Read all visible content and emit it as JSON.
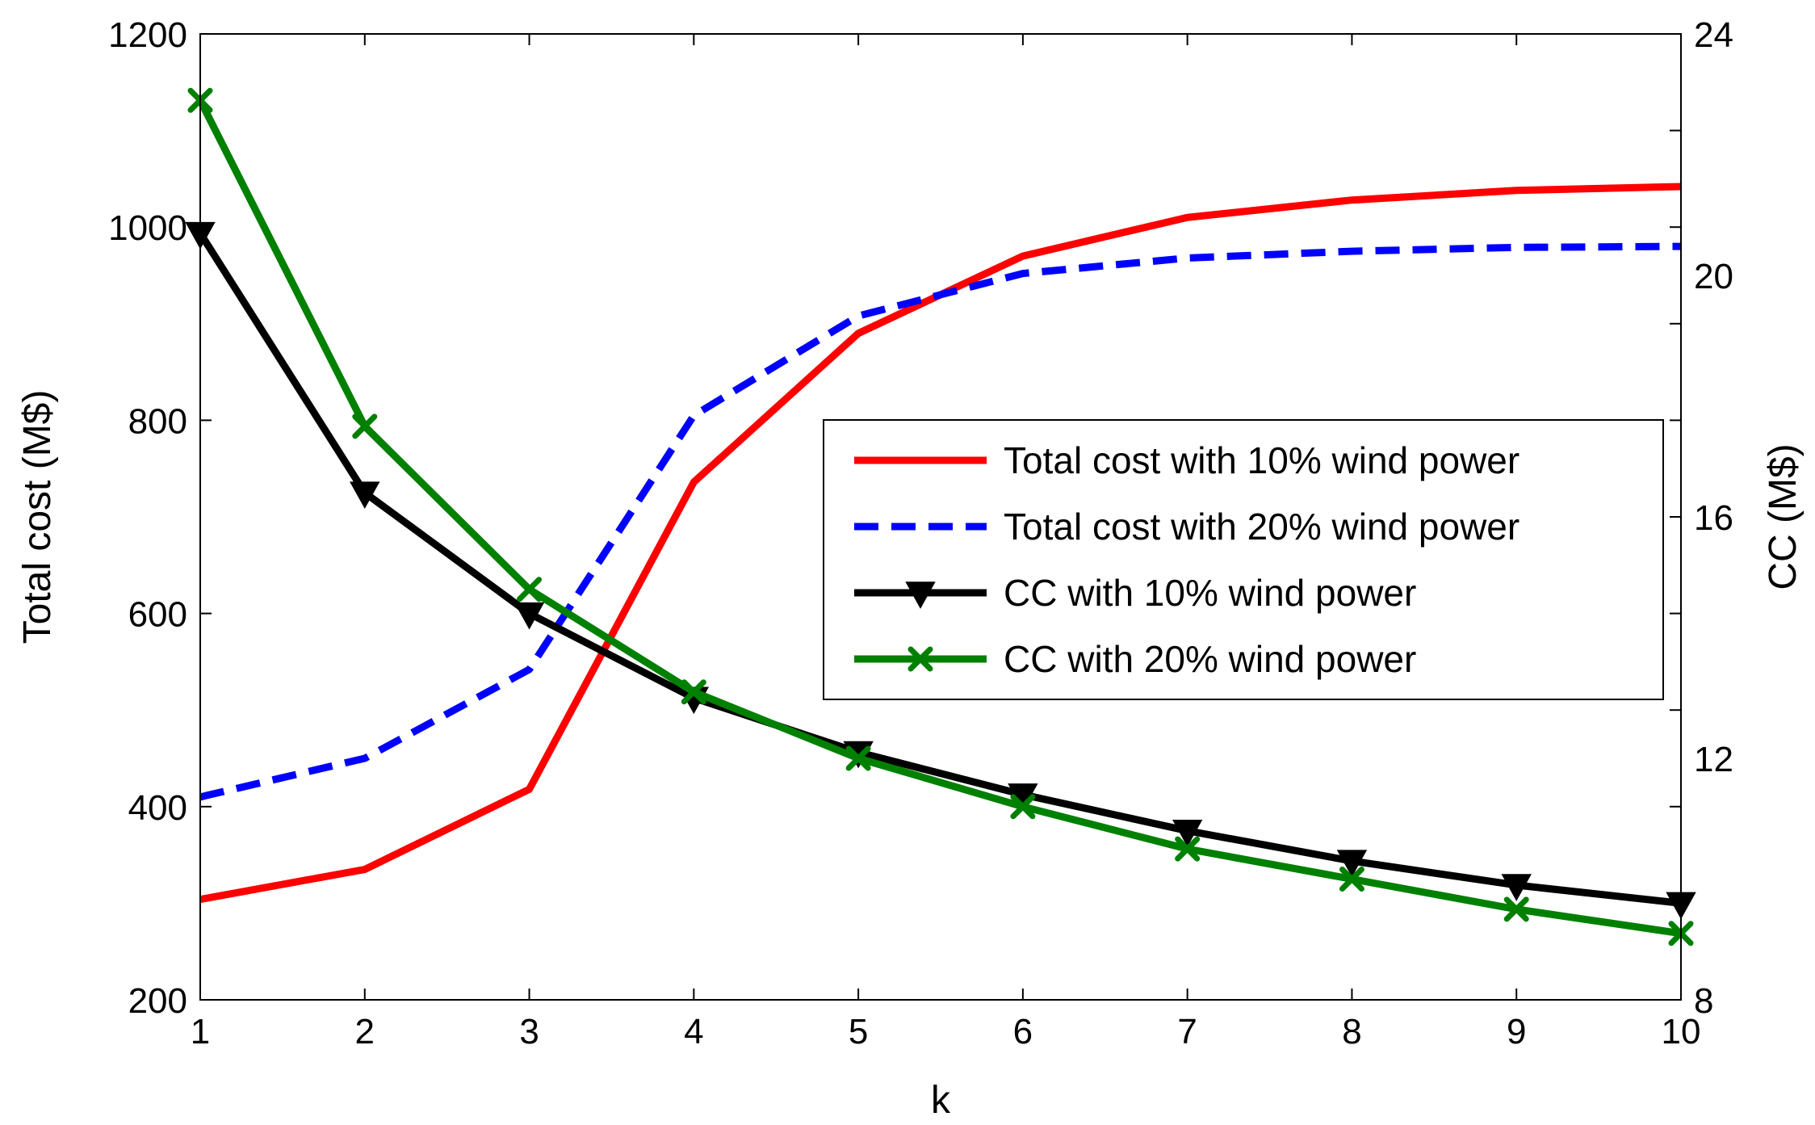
{
  "chart_data": {
    "type": "line",
    "title": "",
    "xlabel": "k",
    "ylabel": "Total cost (M$)",
    "y2label": "CC (M$)",
    "x": [
      1,
      2,
      3,
      4,
      5,
      6,
      7,
      8,
      9,
      10
    ],
    "xlim": [
      1,
      10
    ],
    "ylim": [
      200,
      1200
    ],
    "y2lim": [
      8,
      24
    ],
    "xticks": [
      "1",
      "2",
      "3",
      "4",
      "5",
      "6",
      "7",
      "8",
      "9",
      "10"
    ],
    "yticks": [
      "200",
      "400",
      "600",
      "800",
      "1000",
      "1200"
    ],
    "y2ticks": [
      "8",
      "12",
      "16",
      "20",
      "24"
    ],
    "grid": false,
    "legend_position": "center-right",
    "series": [
      {
        "name": "Total cost with 10% wind power",
        "axis": "left",
        "color": "#ff0000",
        "style": "solid",
        "marker": "none",
        "values": [
          304,
          335,
          418,
          736,
          890,
          970,
          1010,
          1028,
          1038,
          1042
        ]
      },
      {
        "name": "Total cost with 20% wind power",
        "axis": "left",
        "color": "#0000ff",
        "style": "dashed",
        "marker": "none",
        "values": [
          410,
          450,
          542,
          805,
          908,
          952,
          968,
          975,
          979,
          980
        ]
      },
      {
        "name": "CC with 10% wind power",
        "axis": "right",
        "color": "#000000",
        "style": "solid",
        "marker": "triangle-down",
        "values": [
          20.7,
          16.4,
          14.4,
          13.0,
          12.1,
          11.4,
          10.8,
          10.3,
          9.9,
          9.6
        ]
      },
      {
        "name": "CC with 20% wind power",
        "axis": "right",
        "color": "#008000",
        "style": "solid",
        "marker": "x",
        "values": [
          22.9,
          17.5,
          14.8,
          13.1,
          12.0,
          11.2,
          10.5,
          10.0,
          9.5,
          9.1
        ]
      }
    ]
  }
}
